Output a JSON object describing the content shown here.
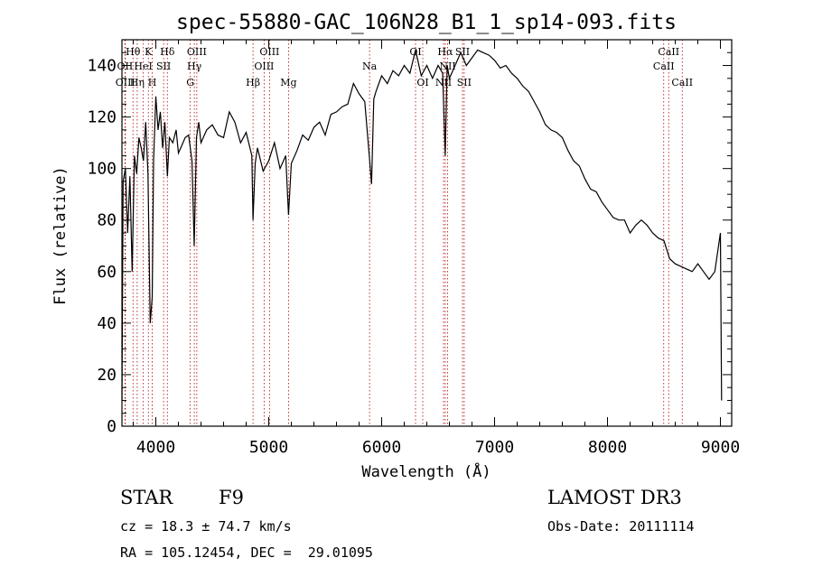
{
  "chart_data": {
    "type": "line",
    "title": "spec-55880-GAC_106N28_B1_1_sp14-093.fits",
    "xlabel": "Wavelength (Å)",
    "ylabel": "Flux (relative)",
    "xlim": [
      3700,
      9100
    ],
    "ylim": [
      0,
      150
    ],
    "xticks": [
      4000,
      5000,
      6000,
      7000,
      8000,
      9000
    ],
    "yticks": [
      0,
      20,
      40,
      60,
      80,
      100,
      120,
      140
    ],
    "series": [
      {
        "name": "flux",
        "x": [
          3700,
          3710,
          3730,
          3750,
          3770,
          3790,
          3810,
          3830,
          3850,
          3870,
          3890,
          3910,
          3930,
          3950,
          3968,
          3980,
          4000,
          4020,
          4040,
          4060,
          4080,
          4102,
          4120,
          4150,
          4180,
          4200,
          4230,
          4260,
          4290,
          4320,
          4340,
          4360,
          4380,
          4400,
          4450,
          4500,
          4550,
          4600,
          4650,
          4700,
          4750,
          4800,
          4850,
          4861,
          4880,
          4900,
          4950,
          5000,
          5050,
          5100,
          5150,
          5175,
          5200,
          5250,
          5300,
          5350,
          5400,
          5450,
          5500,
          5550,
          5600,
          5650,
          5700,
          5750,
          5800,
          5850,
          5890,
          5910,
          5930,
          5950,
          6000,
          6050,
          6100,
          6150,
          6200,
          6250,
          6300,
          6350,
          6400,
          6450,
          6500,
          6540,
          6563,
          6580,
          6600,
          6650,
          6700,
          6750,
          6800,
          6850,
          6900,
          6950,
          7000,
          7050,
          7100,
          7150,
          7200,
          7250,
          7300,
          7350,
          7400,
          7450,
          7500,
          7550,
          7600,
          7650,
          7700,
          7750,
          7800,
          7850,
          7900,
          7950,
          8000,
          8050,
          8100,
          8150,
          8200,
          8250,
          8300,
          8350,
          8400,
          8450,
          8500,
          8550,
          8600,
          8650,
          8700,
          8750,
          8800,
          8850,
          8900,
          8950,
          9000,
          9010
        ],
        "values": [
          10,
          95,
          100,
          75,
          97,
          60,
          105,
          98,
          112,
          108,
          103,
          118,
          98,
          40,
          50,
          103,
          128,
          115,
          122,
          108,
          118,
          97,
          112,
          110,
          115,
          106,
          109,
          112,
          113,
          103,
          70,
          112,
          118,
          110,
          115,
          117,
          113,
          112,
          122,
          118,
          110,
          114,
          105,
          80,
          102,
          108,
          99,
          103,
          110,
          100,
          105,
          82,
          102,
          107,
          113,
          111,
          116,
          118,
          113,
          121,
          122,
          124,
          125,
          133,
          129,
          126,
          105,
          94,
          127,
          130,
          136,
          133,
          138,
          136,
          140,
          137,
          146,
          136,
          140,
          135,
          140,
          137,
          105,
          140,
          135,
          140,
          145,
          140,
          143,
          146,
          145,
          144,
          142,
          139,
          140,
          137,
          135,
          132,
          130,
          126,
          122,
          117,
          115,
          114,
          112,
          107,
          103,
          101,
          96,
          92,
          91,
          87,
          84,
          81,
          80,
          80,
          75,
          78,
          80,
          78,
          75,
          73,
          72,
          65,
          63,
          62,
          61,
          60,
          63,
          60,
          57,
          60,
          75,
          10
        ]
      }
    ],
    "lines": [
      {
        "label": "Hθ",
        "x": 3798,
        "row": 1
      },
      {
        "label": "OII",
        "x": 3727,
        "row": 2
      },
      {
        "label": "OIII",
        "x": 3730,
        "row": 3
      },
      {
        "label": "K",
        "x": 3934,
        "row": 1
      },
      {
        "label": "HeI",
        "x": 3889,
        "row": 2
      },
      {
        "label": "Hη",
        "x": 3835,
        "row": 3
      },
      {
        "label": "SII",
        "x": 4069,
        "row": 2
      },
      {
        "label": "H",
        "x": 3968,
        "row": 3
      },
      {
        "label": "Hδ",
        "x": 4102,
        "row": 1
      },
      {
        "label": "OIII",
        "x": 4363,
        "row": 1
      },
      {
        "label": "Hγ",
        "x": 4341,
        "row": 2
      },
      {
        "label": "G",
        "x": 4305,
        "row": 3
      },
      {
        "label": "OIII",
        "x": 5007,
        "row": 1
      },
      {
        "label": "OIII",
        "x": 4959,
        "row": 2
      },
      {
        "label": "Hβ",
        "x": 4861,
        "row": 3
      },
      {
        "label": "Mg",
        "x": 5175,
        "row": 3
      },
      {
        "label": "Na",
        "x": 5893,
        "row": 2
      },
      {
        "label": "OI",
        "x": 6300,
        "row": 1
      },
      {
        "label": "OI",
        "x": 6364,
        "row": 3
      },
      {
        "label": "Hα",
        "x": 6563,
        "row": 1
      },
      {
        "label": "SII",
        "x": 6716,
        "row": 1
      },
      {
        "label": "NII",
        "x": 6584,
        "row": 2
      },
      {
        "label": "NII",
        "x": 6548,
        "row": 3
      },
      {
        "label": "SII",
        "x": 6731,
        "row": 3
      },
      {
        "label": "CaII",
        "x": 8542,
        "row": 1
      },
      {
        "label": "CaII",
        "x": 8498,
        "row": 2
      },
      {
        "label": "CaII",
        "x": 8662,
        "row": 3
      }
    ]
  },
  "info": {
    "object_type": "STAR",
    "subclass": "F9",
    "survey": "LAMOST DR3",
    "cz": "cz = 18.3 ± 74.7 km/s",
    "obs_date": "Obs-Date: 20111114",
    "coords": "RA = 105.12454, DEC =  29.01095"
  }
}
